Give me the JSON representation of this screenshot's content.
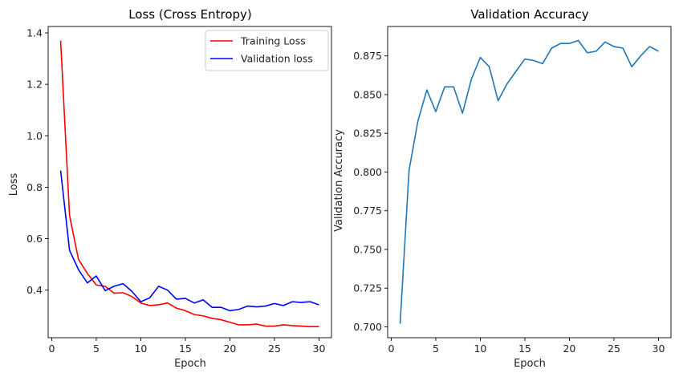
{
  "chart_data": [
    {
      "type": "line",
      "title": "Loss (Cross Entropy)",
      "xlabel": "Epoch",
      "ylabel": "Loss",
      "xlim": [
        -0.4,
        31.4
      ],
      "ylim": [
        0.215,
        1.425
      ],
      "xticks": [
        0,
        5,
        10,
        15,
        20,
        25,
        30
      ],
      "yticks": [
        0.4,
        0.6,
        0.8,
        1.0,
        1.2,
        1.4
      ],
      "ytick_labels": [
        "0.4",
        "0.6",
        "0.8",
        "1.0",
        "1.2",
        "1.4"
      ],
      "legend": "top-right",
      "grid": false,
      "x": [
        1,
        2,
        3,
        4,
        5,
        6,
        7,
        8,
        9,
        10,
        11,
        12,
        13,
        14,
        15,
        16,
        17,
        18,
        19,
        20,
        21,
        22,
        23,
        24,
        25,
        26,
        27,
        28,
        29,
        30
      ],
      "series": [
        {
          "name": "Training Loss",
          "color": "#ff0000",
          "values": [
            1.37,
            0.69,
            0.52,
            0.465,
            0.42,
            0.415,
            0.388,
            0.39,
            0.375,
            0.35,
            0.34,
            0.343,
            0.35,
            0.33,
            0.32,
            0.305,
            0.3,
            0.29,
            0.285,
            0.275,
            0.265,
            0.265,
            0.268,
            0.26,
            0.26,
            0.265,
            0.262,
            0.26,
            0.258,
            0.258
          ]
        },
        {
          "name": "Validation loss",
          "color": "#0000ff",
          "values": [
            0.865,
            0.555,
            0.48,
            0.428,
            0.455,
            0.398,
            0.415,
            0.425,
            0.395,
            0.355,
            0.37,
            0.415,
            0.4,
            0.365,
            0.368,
            0.35,
            0.362,
            0.333,
            0.333,
            0.32,
            0.325,
            0.338,
            0.335,
            0.338,
            0.348,
            0.34,
            0.355,
            0.352,
            0.355,
            0.343
          ]
        }
      ]
    },
    {
      "type": "line",
      "title": "Validation Accuracy",
      "xlabel": "Epoch",
      "ylabel": "Validation Accuracy",
      "xlim": [
        -0.4,
        31.4
      ],
      "ylim": [
        0.693,
        0.894
      ],
      "xticks": [
        0,
        5,
        10,
        15,
        20,
        25,
        30
      ],
      "yticks": [
        0.7,
        0.725,
        0.75,
        0.775,
        0.8,
        0.825,
        0.85,
        0.875
      ],
      "ytick_labels": [
        "0.700",
        "0.725",
        "0.750",
        "0.775",
        "0.800",
        "0.825",
        "0.850",
        "0.875"
      ],
      "grid": false,
      "x": [
        1,
        2,
        3,
        4,
        5,
        6,
        7,
        8,
        9,
        10,
        11,
        12,
        13,
        14,
        15,
        16,
        17,
        18,
        19,
        20,
        21,
        22,
        23,
        24,
        25,
        26,
        27,
        28,
        29,
        30
      ],
      "series": [
        {
          "color": "#1f77b4",
          "values": [
            0.702,
            0.801,
            0.833,
            0.853,
            0.839,
            0.855,
            0.855,
            0.838,
            0.86,
            0.874,
            0.868,
            0.846,
            0.857,
            0.865,
            0.873,
            0.872,
            0.87,
            0.88,
            0.883,
            0.883,
            0.885,
            0.877,
            0.878,
            0.884,
            0.881,
            0.88,
            0.868,
            0.875,
            0.881,
            0.878
          ]
        }
      ]
    }
  ]
}
